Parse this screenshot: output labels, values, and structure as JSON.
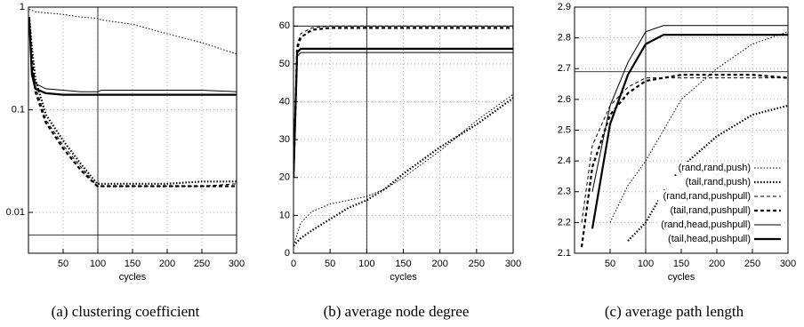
{
  "chart_data": [
    {
      "type": "line",
      "caption": "(a) clustering coefficient",
      "xlabel": "cycles",
      "log_y": true,
      "grid": true,
      "xlim": [
        0,
        300
      ],
      "xticks": [
        50,
        100,
        150,
        200,
        250,
        300
      ],
      "ylim": [
        0.004,
        1
      ],
      "yticks": [
        0.01,
        0.1,
        1
      ],
      "hline": 0.006,
      "vline": 100,
      "x": [
        1,
        5,
        10,
        25,
        50,
        75,
        99,
        105,
        150,
        200,
        250,
        300
      ],
      "series": [
        {
          "color": "#000000",
          "dash": "dotted",
          "width": 1,
          "values": [
            0.95,
            0.93,
            0.9,
            0.88,
            0.85,
            0.8,
            0.78,
            0.75,
            0.68,
            0.55,
            0.45,
            0.35
          ]
        },
        {
          "color": "#000000",
          "dash": "dotted",
          "width": 2.2,
          "values": [
            0.8,
            0.4,
            0.2,
            0.09,
            0.05,
            0.03,
            0.019,
            0.019,
            0.019,
            0.019,
            0.02,
            0.02
          ]
        },
        {
          "color": "#000000",
          "dash": "dashed",
          "width": 1,
          "values": [
            0.8,
            0.35,
            0.17,
            0.08,
            0.045,
            0.028,
            0.018,
            0.018,
            0.018,
            0.018,
            0.018,
            0.019
          ]
        },
        {
          "color": "#000000",
          "dash": "dashed",
          "width": 2.2,
          "values": [
            0.8,
            0.3,
            0.15,
            0.075,
            0.042,
            0.026,
            0.018,
            0.018,
            0.018,
            0.018,
            0.018,
            0.018
          ]
        },
        {
          "color": "#000000",
          "dash": "solid",
          "width": 1,
          "values": [
            0.8,
            0.25,
            0.18,
            0.16,
            0.155,
            0.15,
            0.15,
            0.155,
            0.155,
            0.155,
            0.155,
            0.15
          ]
        },
        {
          "color": "#000000",
          "dash": "solid",
          "width": 2.2,
          "values": [
            0.8,
            0.22,
            0.16,
            0.145,
            0.14,
            0.14,
            0.14,
            0.14,
            0.14,
            0.14,
            0.14,
            0.14
          ]
        }
      ]
    },
    {
      "type": "line",
      "caption": "(b) average node degree",
      "xlabel": "cycles",
      "log_y": false,
      "grid": true,
      "xlim": [
        0,
        300
      ],
      "xticks": [
        0,
        50,
        100,
        150,
        200,
        250,
        300
      ],
      "ylim": [
        0,
        65
      ],
      "yticks": [
        0,
        10,
        20,
        30,
        40,
        50,
        60
      ],
      "hline": 60,
      "vline": 100,
      "x": [
        0,
        5,
        10,
        25,
        50,
        75,
        100,
        125,
        150,
        200,
        250,
        300
      ],
      "series": [
        {
          "color": "#000000",
          "dash": "dotted",
          "width": 1,
          "values": [
            2,
            5,
            8,
            11,
            13,
            14,
            15,
            17,
            20,
            27,
            35,
            42
          ]
        },
        {
          "color": "#000000",
          "dash": "dotted",
          "width": 2.2,
          "values": [
            2,
            3,
            4,
            6,
            9,
            12,
            14,
            17,
            21,
            28,
            34,
            41
          ]
        },
        {
          "color": "#000000",
          "dash": "dashed",
          "width": 1,
          "values": [
            20,
            55,
            58,
            59.5,
            60,
            60,
            60,
            60,
            60,
            60,
            60,
            60
          ]
        },
        {
          "color": "#000000",
          "dash": "dashed",
          "width": 2.2,
          "values": [
            20,
            54,
            57,
            59,
            59.5,
            59.5,
            59.5,
            59.5,
            59.5,
            59.5,
            59.5,
            59.5
          ]
        },
        {
          "color": "#000000",
          "dash": "solid",
          "width": 1,
          "values": [
            20,
            52,
            53,
            53,
            53,
            53,
            53,
            53,
            53,
            53,
            53,
            53
          ]
        },
        {
          "color": "#000000",
          "dash": "solid",
          "width": 2.2,
          "values": [
            20,
            53,
            54,
            54,
            54,
            54,
            54,
            54,
            54,
            54,
            54,
            54
          ]
        }
      ]
    },
    {
      "type": "line",
      "caption": "(c) average path length",
      "xlabel": "cycles",
      "log_y": false,
      "grid": true,
      "legend": "lower right",
      "xlim": [
        0,
        300
      ],
      "xticks": [
        50,
        100,
        150,
        200,
        250,
        300
      ],
      "ylim": [
        2.1,
        2.9
      ],
      "yticks": [
        2.1,
        2.2,
        2.3,
        2.4,
        2.5,
        2.6,
        2.7,
        2.8,
        2.9
      ],
      "hline": 2.69,
      "vline": 100,
      "x": [
        10,
        25,
        50,
        75,
        100,
        125,
        150,
        200,
        250,
        300
      ],
      "series": [
        {
          "name": "(rand,rand,push)",
          "color": "#000000",
          "dash": "dotted",
          "width": 1,
          "values": [
            null,
            null,
            2.2,
            2.32,
            2.4,
            2.5,
            2.6,
            2.7,
            2.78,
            2.82
          ]
        },
        {
          "name": "(tail,rand,push)",
          "color": "#000000",
          "dash": "dotted",
          "width": 2.2,
          "values": [
            null,
            null,
            null,
            2.14,
            2.2,
            2.3,
            2.38,
            2.48,
            2.55,
            2.58
          ]
        },
        {
          "name": "(rand,rand,pushpull)",
          "color": "#000000",
          "dash": "dashed",
          "width": 1,
          "values": [
            2.2,
            2.45,
            2.58,
            2.64,
            2.67,
            2.67,
            2.67,
            2.67,
            2.67,
            2.67
          ]
        },
        {
          "name": "(tail,rand,pushpull)",
          "color": "#000000",
          "dash": "dashed",
          "width": 2.2,
          "values": [
            2.12,
            2.38,
            2.55,
            2.62,
            2.66,
            2.67,
            2.68,
            2.68,
            2.68,
            2.67
          ]
        },
        {
          "name": "(rand,head,pushpull)",
          "color": "#000000",
          "dash": "solid",
          "width": 1,
          "values": [
            null,
            2.3,
            2.58,
            2.72,
            2.82,
            2.84,
            2.84,
            2.84,
            2.84,
            2.84
          ]
        },
        {
          "name": "(tail,head,pushpull)",
          "color": "#000000",
          "dash": "solid",
          "width": 2.2,
          "values": [
            null,
            2.18,
            2.52,
            2.68,
            2.78,
            2.81,
            2.81,
            2.81,
            2.81,
            2.81
          ]
        }
      ]
    }
  ]
}
